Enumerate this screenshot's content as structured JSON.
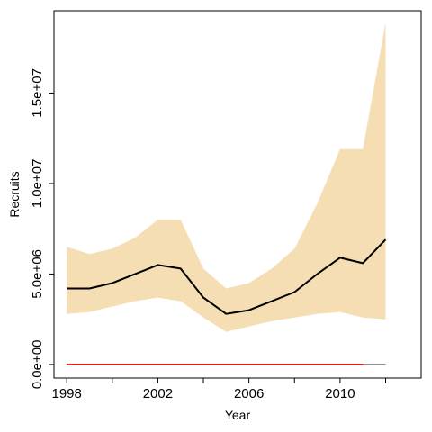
{
  "colors": {
    "band": "#F5DEB3",
    "median": "#000000",
    "reference": "#FF0000",
    "reference_tail": "#808080",
    "axis": "#000000"
  },
  "chart_data": {
    "type": "line",
    "title": "",
    "xlabel": "Year",
    "ylabel": "Recruits",
    "xlim": [
      1997.44,
      2013.56
    ],
    "ylim": [
      -750000,
      19550000
    ],
    "grid": false,
    "x": [
      1998,
      1999,
      2000,
      2001,
      2002,
      2003,
      2004,
      2005,
      2006,
      2007,
      2008,
      2009,
      2010,
      2011,
      2012
    ],
    "series": [
      {
        "role": "band-lower",
        "values": [
          2800000,
          2900000,
          3200000,
          3500000,
          3700000,
          3500000,
          2600000,
          1800000,
          2100000,
          2400000,
          2600000,
          2800000,
          2900000,
          2600000,
          2500000
        ]
      },
      {
        "role": "band-upper",
        "values": [
          6500000,
          6100000,
          6400000,
          7000000,
          8000000,
          8000000,
          5300000,
          4200000,
          4500000,
          5300000,
          6400000,
          8900000,
          11900000,
          11900000,
          18900000
        ]
      },
      {
        "role": "median",
        "values": [
          4200000,
          4200000,
          4500000,
          5000000,
          5500000,
          5300000,
          3700000,
          2800000,
          3000000,
          3500000,
          4000000,
          5000000,
          5900000,
          5600000,
          6900000
        ]
      },
      {
        "role": "reference",
        "values": [
          0,
          0,
          0,
          0,
          0,
          0,
          0,
          0,
          0,
          0,
          0,
          0,
          0,
          0,
          0
        ]
      }
    ],
    "x_ticks": [
      1998,
      2000,
      2002,
      2004,
      2006,
      2008,
      2010,
      2012
    ],
    "x_tick_labels": [
      "1998",
      "",
      "2002",
      "",
      "2006",
      "",
      "2010",
      ""
    ],
    "y_ticks": [
      0,
      5000000,
      10000000,
      15000000
    ],
    "y_tick_labels": [
      "0.0e+00",
      "5.0e+06",
      "1.0e+07",
      "1.5e+07"
    ]
  }
}
